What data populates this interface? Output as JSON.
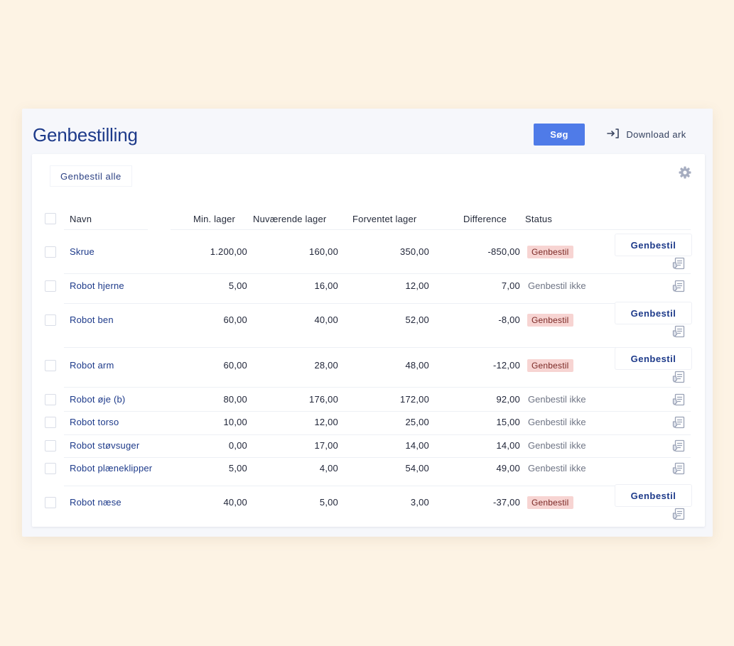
{
  "header": {
    "title": "Genbestilling",
    "search": {
      "value": "",
      "placeholder": ""
    },
    "search_label": "Søg",
    "download_label": "Download ark"
  },
  "panel": {
    "reorder_all_label": "Genbestil alle"
  },
  "columns": [
    "Navn",
    "Min. lager",
    "Nuværende lager",
    "Forventet lager",
    "Difference",
    "Status"
  ],
  "rows": [
    {
      "name": "Skrue",
      "min": "1.200,00",
      "current": "160,00",
      "expected": "350,00",
      "difference": "-850,00",
      "status": "Genbestil",
      "needs_reorder": true,
      "action_label": "Genbestil"
    },
    {
      "name": "Robot hjerne",
      "min": "5,00",
      "current": "16,00",
      "expected": "12,00",
      "difference": "7,00",
      "status": "Genbestil ikke",
      "needs_reorder": false
    },
    {
      "name": "Robot ben",
      "min": "60,00",
      "current": "40,00",
      "expected": "52,00",
      "difference": "-8,00",
      "status": "Genbestil",
      "needs_reorder": true,
      "action_label": "Genbestil"
    },
    {
      "name": "Robot arm",
      "min": "60,00",
      "current": "28,00",
      "expected": "48,00",
      "difference": "-12,00",
      "status": "Genbestil",
      "needs_reorder": true,
      "action_label": "Genbestil"
    },
    {
      "name": "Robot øje (b)",
      "min": "80,00",
      "current": "176,00",
      "expected": "172,00",
      "difference": "92,00",
      "status": "Genbestil ikke",
      "needs_reorder": false
    },
    {
      "name": "Robot torso",
      "min": "10,00",
      "current": "12,00",
      "expected": "25,00",
      "difference": "15,00",
      "status": "Genbestil ikke",
      "needs_reorder": false
    },
    {
      "name": "Robot støvsuger",
      "min": "0,00",
      "current": "17,00",
      "expected": "14,00",
      "difference": "14,00",
      "status": "Genbestil ikke",
      "needs_reorder": false
    },
    {
      "name": "Robot plæneklipper",
      "min": "5,00",
      "current": "4,00",
      "expected": "54,00",
      "difference": "49,00",
      "status": "Genbestil ikke",
      "needs_reorder": false
    },
    {
      "name": "Robot næse",
      "min": "40,00",
      "current": "5,00",
      "expected": "3,00",
      "difference": "-37,00",
      "status": "Genbestil",
      "needs_reorder": true,
      "action_label": "Genbestil"
    }
  ],
  "colors": {
    "accent": "#4f7be8",
    "title": "#1d3a8a",
    "reorder_badge_bg": "#f7d4d2",
    "reorder_badge_text": "#7b2926",
    "page_background": "#fdf3e4"
  },
  "icons": {
    "download": "sign-in-arrow-icon",
    "settings": "gear-icon",
    "row_document": "document-list-icon"
  }
}
